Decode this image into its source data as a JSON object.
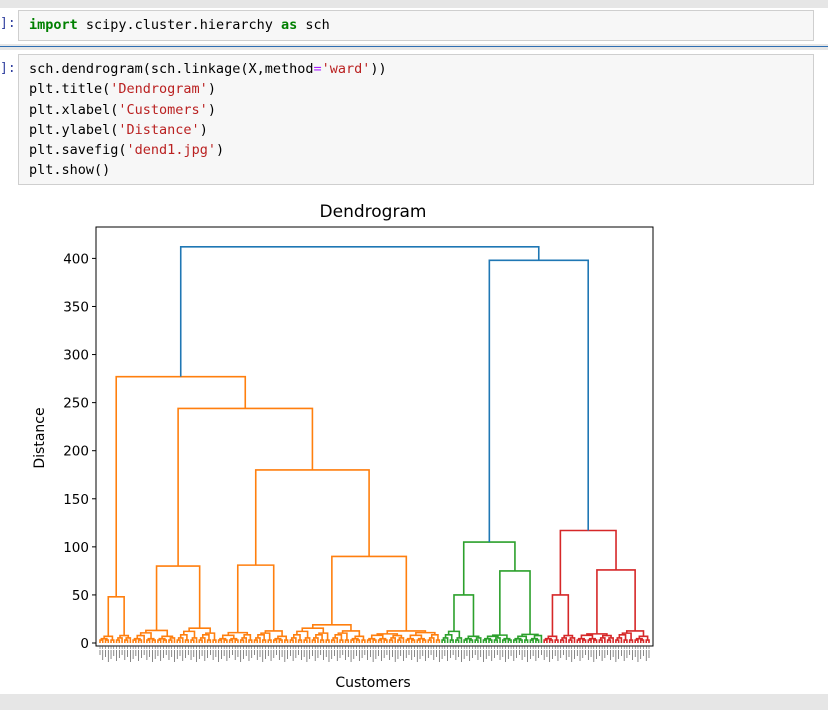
{
  "cells": [
    {
      "prompt": "]:",
      "lines": [
        [
          {
            "t": "import",
            "c": "kw"
          },
          {
            "t": " scipy.cluster.hierarchy ",
            "c": ""
          },
          {
            "t": "as",
            "c": "kw"
          },
          {
            "t": " sch",
            "c": ""
          }
        ]
      ]
    },
    {
      "prompt": "]:",
      "lines": [
        [
          {
            "t": "sch.dendrogram(sch.linkage(X,method",
            "c": ""
          },
          {
            "t": "=",
            "c": "op"
          },
          {
            "t": "'ward'",
            "c": "str"
          },
          {
            "t": "))",
            "c": ""
          }
        ],
        [
          {
            "t": "plt.title(",
            "c": ""
          },
          {
            "t": "'Dendrogram'",
            "c": "str"
          },
          {
            "t": ")",
            "c": ""
          }
        ],
        [
          {
            "t": "plt.xlabel(",
            "c": ""
          },
          {
            "t": "'Customers'",
            "c": "str"
          },
          {
            "t": ")",
            "c": ""
          }
        ],
        [
          {
            "t": "plt.ylabel(",
            "c": ""
          },
          {
            "t": "'Distance'",
            "c": "str"
          },
          {
            "t": ")",
            "c": ""
          }
        ],
        [
          {
            "t": "plt.savefig(",
            "c": ""
          },
          {
            "t": "'dend1.jpg'",
            "c": "str"
          },
          {
            "t": ")",
            "c": ""
          }
        ],
        [
          {
            "t": "plt.show()",
            "c": ""
          }
        ]
      ]
    }
  ],
  "chart_data": {
    "type": "dendrogram",
    "title": "Dendrogram",
    "xlabel": "Customers",
    "ylabel": "Distance",
    "ylim": [
      0,
      430
    ],
    "yticks": [
      0,
      50,
      100,
      150,
      200,
      250,
      300,
      350,
      400
    ],
    "leaf_count": 200,
    "colors": {
      "orange": "#ff7f0e",
      "green": "#2ca02c",
      "red": "#d62728",
      "blue": "#1f77b4"
    },
    "clusters": [
      {
        "color": "orange",
        "leaves": [
          0,
          123
        ]
      },
      {
        "color": "green",
        "leaves": [
          124,
          160
        ]
      },
      {
        "color": "red",
        "leaves": [
          161,
          199
        ]
      }
    ],
    "merges": [
      {
        "name": "root",
        "height": 412,
        "color": "blue",
        "left": "orange-top",
        "right": "green-red"
      },
      {
        "name": "green-red",
        "height": 398,
        "color": "blue",
        "left": "green-top",
        "right": "red-top"
      },
      {
        "name": "orange-top",
        "height": 277,
        "color": "orange",
        "left": "o1",
        "right": "o2"
      },
      {
        "name": "o2",
        "height": 244,
        "color": "orange",
        "left": "o2a",
        "right": "o2b"
      },
      {
        "name": "o2b",
        "height": 180,
        "color": "orange",
        "left": "o2b1",
        "right": "o2b2"
      },
      {
        "name": "o1",
        "height": 48,
        "color": "orange"
      },
      {
        "name": "o2a",
        "height": 80,
        "color": "orange"
      },
      {
        "name": "o2b1",
        "height": 81,
        "color": "orange"
      },
      {
        "name": "o2b2",
        "height": 90,
        "color": "orange"
      },
      {
        "name": "green-top",
        "height": 105,
        "color": "green",
        "left": "g1",
        "right": "g2"
      },
      {
        "name": "g1",
        "height": 50,
        "color": "green"
      },
      {
        "name": "g2",
        "height": 75,
        "color": "green"
      },
      {
        "name": "red-top",
        "height": 117,
        "color": "red",
        "left": "r1",
        "right": "r2"
      },
      {
        "name": "r1",
        "height": 50,
        "color": "red"
      },
      {
        "name": "r2",
        "height": 76,
        "color": "red"
      }
    ]
  }
}
